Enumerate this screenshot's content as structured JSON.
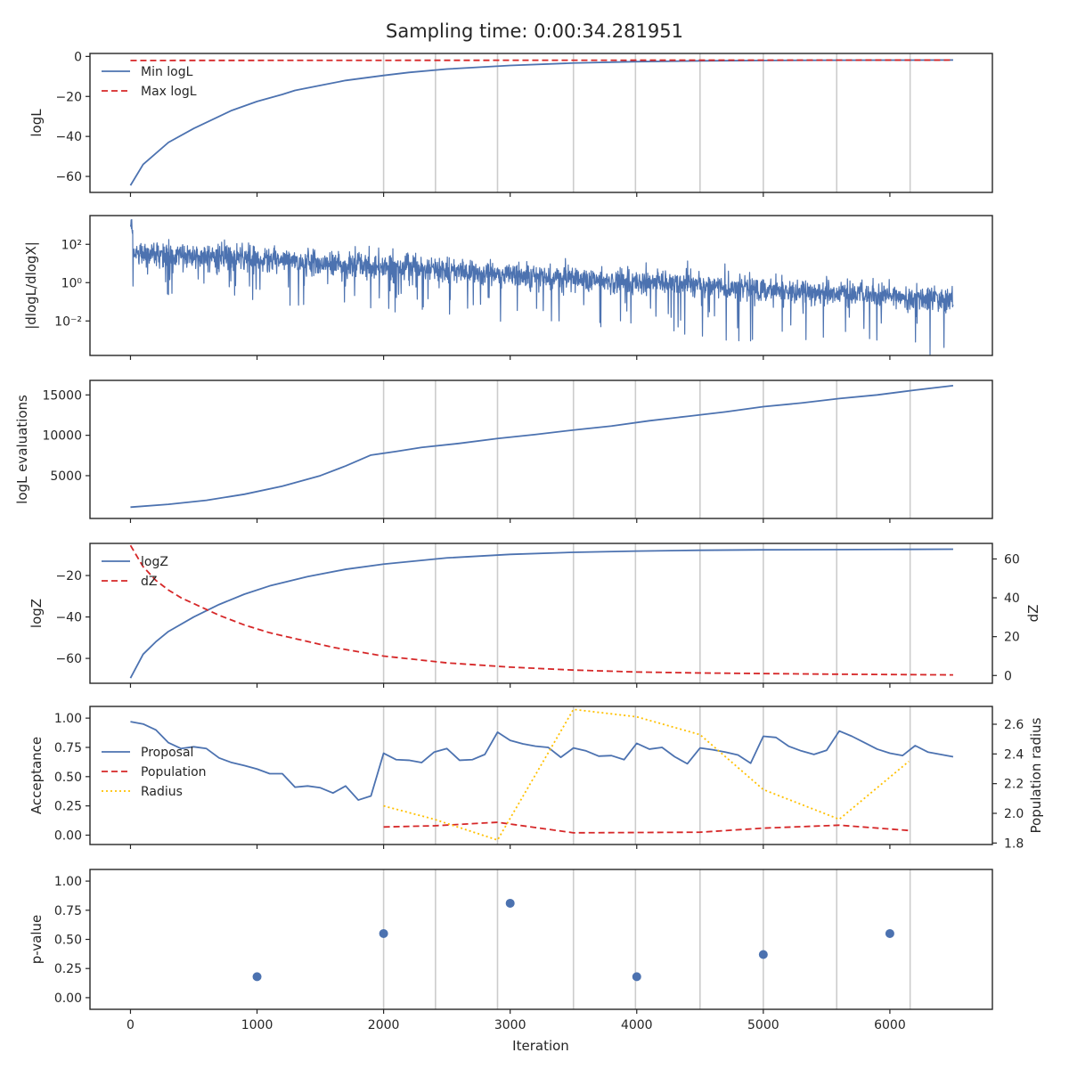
{
  "figure": {
    "title": "Sampling time: 0:00:34.281951",
    "xlabel": "Iteration",
    "colors": {
      "blue": "#4c72b0",
      "red": "#d62728",
      "gold": "#ffc000",
      "vline": "#cccccc",
      "axes": "#262626"
    }
  },
  "chart_data": [
    {
      "id": "logL",
      "type": "line",
      "ylabel": "logL",
      "xlim": [
        -320,
        6810
      ],
      "ylim": [
        -68,
        1.5
      ],
      "yticks": [
        -60,
        -40,
        -20,
        0
      ],
      "ytick_labels": [
        "−60",
        "−40",
        "−20",
        "0"
      ],
      "show_vlines": true,
      "legend": {
        "placement": "upper-left",
        "entries": [
          {
            "label": "Min logL",
            "color": "#4c72b0",
            "dash": "solid"
          },
          {
            "label": "Max logL",
            "color": "#d62728",
            "dash": "dashed"
          }
        ]
      },
      "series": [
        {
          "name": "Min logL",
          "color": "#4c72b0",
          "dash": "solid",
          "x": [
            0,
            100,
            300,
            500,
            800,
            1000,
            1200,
            1300,
            1500,
            1700,
            2000,
            2200,
            2500,
            3000,
            3500,
            4000,
            4500,
            5000,
            5500,
            6000,
            6500
          ],
          "y": [
            -64.5,
            -54,
            -43,
            -36,
            -27,
            -22.5,
            -19,
            -17,
            -14.5,
            -12,
            -9.5,
            -8,
            -6.3,
            -4.5,
            -3.3,
            -2.6,
            -2.2,
            -2.0,
            -1.9,
            -1.85,
            -1.8
          ]
        },
        {
          "name": "Max logL",
          "color": "#d62728",
          "dash": "dashed",
          "x": [
            0,
            6500
          ],
          "y": [
            -2.0,
            -1.8
          ]
        }
      ]
    },
    {
      "id": "dlogL",
      "type": "line",
      "ylabel": "|dlogL/dlogX|",
      "yscale": "log",
      "xlim": [
        -320,
        6810
      ],
      "ylim": [
        -3.8,
        3.5
      ],
      "yticks": [
        -2,
        0,
        2
      ],
      "ytick_labels": [
        "10⁻²",
        "10⁰",
        "10²"
      ],
      "show_vlines": false,
      "series": [
        {
          "name": "dlogL",
          "color": "#4c72b0",
          "dash": "solid",
          "noisy": true,
          "n_points": 6500,
          "envelope_x": [
            0,
            6500
          ],
          "center_log10": [
            1.6,
            -0.9
          ],
          "spread_log10": [
            0.6,
            0.55
          ],
          "spike_depth_log10": [
            1.5,
            2.6
          ]
        }
      ]
    },
    {
      "id": "evals",
      "type": "line",
      "ylabel": "logL evaluations",
      "xlim": [
        -320,
        6810
      ],
      "ylim": [
        -300,
        16800
      ],
      "yticks": [
        5000,
        10000,
        15000
      ],
      "ytick_labels": [
        "5000",
        "10000",
        "15000"
      ],
      "show_vlines": true,
      "series": [
        {
          "name": "logL evaluations",
          "color": "#4c72b0",
          "dash": "solid",
          "x": [
            0,
            300,
            600,
            900,
            1200,
            1500,
            1700,
            1900,
            2100,
            2300,
            2600,
            2900,
            3200,
            3500,
            3800,
            4100,
            4400,
            4700,
            5000,
            5300,
            5600,
            5900,
            6200,
            6500
          ],
          "y": [
            1100,
            1450,
            1950,
            2700,
            3700,
            5000,
            6200,
            7550,
            8000,
            8500,
            9000,
            9600,
            10100,
            10650,
            11150,
            11800,
            12350,
            12900,
            13550,
            14000,
            14550,
            15000,
            15600,
            16150
          ]
        }
      ]
    },
    {
      "id": "logZ",
      "type": "line",
      "ylabel": "logZ",
      "ylabel_right": "dZ",
      "xlim": [
        -320,
        6810
      ],
      "ylim": [
        -72,
        -4.5
      ],
      "ylim_right": [
        -4,
        68
      ],
      "yticks": [
        -60,
        -40,
        -20
      ],
      "ytick_labels": [
        "−60",
        "−40",
        "−20"
      ],
      "yticks_right": [
        0,
        20,
        40,
        60
      ],
      "ytick_labels_right": [
        "0",
        "20",
        "40",
        "60"
      ],
      "show_vlines": true,
      "legend": {
        "placement": "upper-left",
        "entries": [
          {
            "label": "logZ",
            "color": "#4c72b0",
            "dash": "solid"
          },
          {
            "label": "dZ",
            "color": "#d62728",
            "dash": "dashed"
          }
        ]
      },
      "series": [
        {
          "name": "logZ",
          "color": "#4c72b0",
          "dash": "solid",
          "axis": "left",
          "x": [
            0,
            100,
            200,
            300,
            500,
            700,
            900,
            1100,
            1400,
            1700,
            2000,
            2500,
            3000,
            3500,
            4000,
            4500,
            5000,
            5500,
            6000,
            6500
          ],
          "y": [
            -69.5,
            -58,
            -52,
            -47,
            -40,
            -34,
            -29,
            -25,
            -20.5,
            -17,
            -14.5,
            -11.5,
            -9.8,
            -8.8,
            -8.2,
            -7.8,
            -7.6,
            -7.5,
            -7.4,
            -7.3
          ]
        },
        {
          "name": "dZ",
          "color": "#d62728",
          "dash": "dashed",
          "axis": "right",
          "x": [
            0,
            100,
            200,
            300,
            400,
            500,
            700,
            900,
            1100,
            1300,
            1600,
            2000,
            2500,
            3000,
            3500,
            4000,
            4500,
            5000,
            5500,
            6000,
            6500
          ],
          "y": [
            67,
            56,
            49,
            44,
            40,
            37,
            31,
            26,
            22,
            19,
            14.5,
            10,
            6.5,
            4.3,
            2.8,
            1.8,
            1.3,
            1.0,
            0.7,
            0.5,
            0.3
          ]
        }
      ]
    },
    {
      "id": "acceptance",
      "type": "line",
      "ylabel": "Acceptance",
      "ylabel_right": "Population radius",
      "xlim": [
        -320,
        6810
      ],
      "ylim": [
        -0.08,
        1.1
      ],
      "ylim_right": [
        1.79,
        2.72
      ],
      "yticks": [
        0.0,
        0.25,
        0.5,
        0.75,
        1.0
      ],
      "ytick_labels": [
        "0.00",
        "0.25",
        "0.50",
        "0.75",
        "1.00"
      ],
      "yticks_right": [
        1.8,
        2.0,
        2.2,
        2.4,
        2.6
      ],
      "ytick_labels_right": [
        "1.8",
        "2.0",
        "2.2",
        "2.4",
        "2.6"
      ],
      "show_vlines": true,
      "legend": {
        "placement": "lower-left",
        "entries": [
          {
            "label": "Proposal",
            "color": "#4c72b0",
            "dash": "solid"
          },
          {
            "label": "Population",
            "color": "#d62728",
            "dash": "dashed"
          },
          {
            "label": "Radius",
            "color": "#ffc000",
            "dash": "dotted"
          }
        ]
      },
      "series": [
        {
          "name": "Proposal",
          "color": "#4c72b0",
          "dash": "solid",
          "axis": "left",
          "x": [
            0,
            100,
            200,
            300,
            400,
            500,
            600,
            700,
            800,
            900,
            1000,
            1100,
            1200,
            1300,
            1400,
            1500,
            1600,
            1700,
            1800,
            1900,
            2000,
            2100,
            2200,
            2300,
            2400,
            2500,
            2600,
            2700,
            2800,
            2900,
            3000,
            3100,
            3200,
            3300,
            3400,
            3500,
            3600,
            3700,
            3800,
            3900,
            4000,
            4100,
            4200,
            4300,
            4400,
            4500,
            4600,
            4700,
            4800,
            4900,
            5000,
            5100,
            5200,
            5300,
            5400,
            5500,
            5600,
            5700,
            5800,
            5900,
            6000,
            6100,
            6200,
            6300,
            6400,
            6500
          ],
          "y": [
            0.97,
            0.95,
            0.9,
            0.79,
            0.74,
            0.755,
            0.74,
            0.66,
            0.62,
            0.595,
            0.565,
            0.525,
            0.525,
            0.41,
            0.42,
            0.405,
            0.36,
            0.42,
            0.3,
            0.335,
            0.7,
            0.645,
            0.64,
            0.62,
            0.71,
            0.74,
            0.64,
            0.645,
            0.69,
            0.88,
            0.81,
            0.78,
            0.76,
            0.75,
            0.665,
            0.745,
            0.72,
            0.675,
            0.68,
            0.645,
            0.785,
            0.735,
            0.75,
            0.67,
            0.61,
            0.745,
            0.73,
            0.71,
            0.685,
            0.615,
            0.845,
            0.835,
            0.76,
            0.72,
            0.69,
            0.725,
            0.89,
            0.845,
            0.79,
            0.735,
            0.7,
            0.68,
            0.765,
            0.71,
            0.69,
            0.67
          ]
        },
        {
          "name": "Population",
          "color": "#d62728",
          "dash": "dashed",
          "axis": "left",
          "x": [
            2000,
            2400,
            2900,
            3500,
            4500,
            5000,
            5600,
            6150
          ],
          "y": [
            0.07,
            0.08,
            0.11,
            0.02,
            0.025,
            0.06,
            0.085,
            0.04
          ]
        },
        {
          "name": "Radius",
          "color": "#ffc000",
          "dash": "dotted",
          "axis": "right",
          "x": [
            2000,
            2400,
            2900,
            3500,
            4000,
            4500,
            5000,
            5600,
            6150
          ],
          "y": [
            2.05,
            1.96,
            1.82,
            2.7,
            2.65,
            2.53,
            2.16,
            1.96,
            2.35
          ]
        }
      ]
    },
    {
      "id": "pvalue",
      "type": "scatter",
      "ylabel": "p-value",
      "xlim": [
        -320,
        6810
      ],
      "ylim": [
        -0.1,
        1.1
      ],
      "yticks": [
        0.0,
        0.25,
        0.5,
        0.75,
        1.0
      ],
      "ytick_labels": [
        "0.00",
        "0.25",
        "0.50",
        "0.75",
        "1.00"
      ],
      "show_vlines": true,
      "series": [
        {
          "name": "p-value",
          "color": "#4c72b0",
          "x": [
            1000,
            2000,
            3000,
            4000,
            5000,
            6000
          ],
          "y": [
            0.18,
            0.55,
            0.81,
            0.18,
            0.37,
            0.55
          ]
        }
      ]
    }
  ],
  "shared_x": {
    "xticks": [
      0,
      1000,
      2000,
      3000,
      4000,
      5000,
      6000
    ],
    "xtick_labels": [
      "0",
      "1000",
      "2000",
      "3000",
      "4000",
      "5000",
      "6000"
    ],
    "vlines": [
      2000,
      2410,
      2900,
      3500,
      3990,
      4500,
      5000,
      5580,
      6160
    ]
  }
}
